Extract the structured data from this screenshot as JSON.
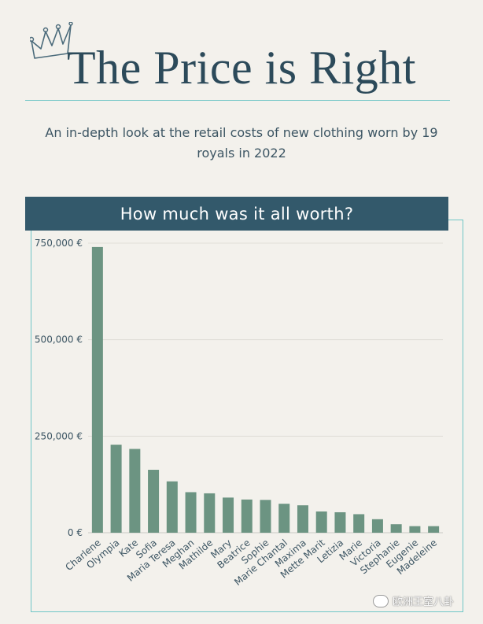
{
  "header": {
    "title": "The Price is Right",
    "subtitle": "An in-depth look at the retail costs of new clothing worn by 19 royals in 2022",
    "crown_icon": "crown-icon"
  },
  "chart_banner": "How much was it all worth?",
  "watermark": {
    "text": "欧洲王室八卦",
    "icon": "wechat-icon"
  },
  "colors": {
    "bar": "#6c9482",
    "title": "#2c4a5a",
    "banner": "#33596b",
    "accent": "#6fc6c6",
    "axis_text": "#3c5563"
  },
  "chart_data": {
    "type": "bar",
    "title": "How much was it all worth?",
    "xlabel": "",
    "ylabel": "",
    "categories": [
      "Charlene",
      "Olympia",
      "Kate",
      "Sofia",
      "Maria Teresa",
      "Meghan",
      "Mathilde",
      "Mary",
      "Beatrice",
      "Sophie",
      "Marie Chantal",
      "Maxima",
      "Mette Marit",
      "Letizia",
      "Marie",
      "Victoria",
      "Stephanie",
      "Eugenie",
      "Madeleine"
    ],
    "values": [
      740000,
      228000,
      217000,
      163000,
      133000,
      105000,
      102000,
      91000,
      86000,
      85000,
      75000,
      71000,
      55000,
      53000,
      48000,
      35000,
      22000,
      17000,
      17000
    ],
    "ylim": [
      0,
      750000
    ],
    "yticks": [
      0,
      250000,
      500000,
      750000
    ],
    "ytick_labels": [
      "0 €",
      "250,000 €",
      "500,000 €",
      "750,000 €"
    ],
    "grid": true,
    "legend": "none"
  }
}
